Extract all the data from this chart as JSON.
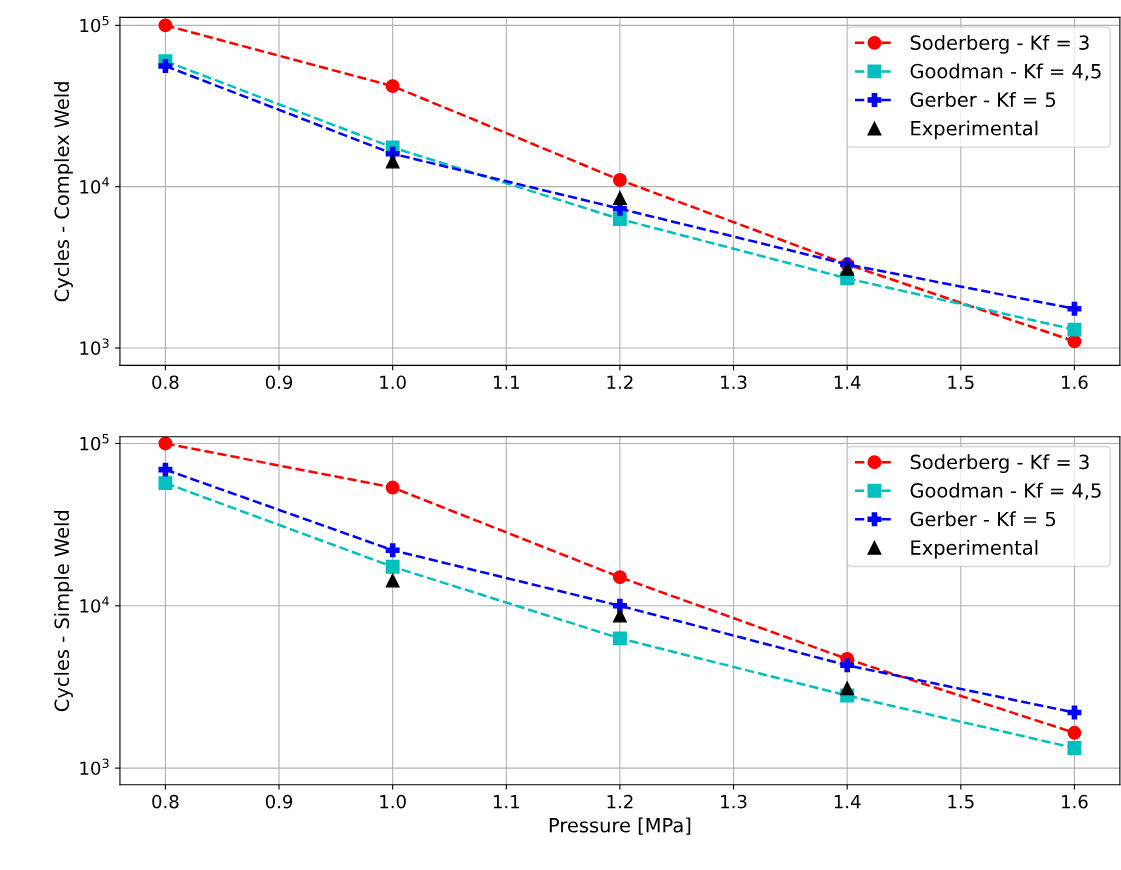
{
  "chart_data": [
    {
      "type": "line",
      "ylabel": "Cycles - Complex Weld",
      "x": [
        0.8,
        1.0,
        1.2,
        1.4,
        1.6
      ],
      "log": "y",
      "grid": true,
      "legend": "top right",
      "xlim": [
        0.76,
        1.64
      ],
      "xticks": [
        0.8,
        0.9,
        {
          "value": 1.0,
          "label": "1.0"
        },
        1.1,
        1.2,
        1.3,
        1.4,
        1.5,
        1.6
      ],
      "ylim": [
        780,
        112000
      ],
      "yticks": [
        {
          "value": 1000,
          "label": "10$^{3}$"
        },
        {
          "value": 10000,
          "label": "10$^{4}$"
        },
        {
          "value": 100000,
          "label": "10$^{5}$"
        }
      ],
      "series": [
        {
          "name": "Soderberg - Kf = 3",
          "color": "#ff0000",
          "marker": "circle",
          "line_style": "dashed",
          "values": [
            100000,
            42000,
            11000,
            3300,
            1100
          ]
        },
        {
          "name": "Goodman - Kf = 4,5",
          "color": "#00bfbf",
          "marker": "square",
          "line_style": "dashed",
          "values": [
            60000,
            17500,
            6300,
            2700,
            1300
          ]
        },
        {
          "name": "Gerber - Kf = 5",
          "color": "#0000ff",
          "marker": "cross",
          "line_style": "dashed",
          "values": [
            56000,
            16000,
            7300,
            3300,
            1750
          ]
        },
        {
          "name": "Experimental",
          "color": "#000000",
          "type": "scatter",
          "marker": "triangle",
          "values": [
            null,
            14300,
            8500,
            3100,
            null
          ]
        }
      ]
    },
    {
      "type": "line",
      "ylabel": "Cycles - Simple Weld",
      "xlabel": "Pressure [MPa]",
      "x": [
        0.8,
        1.0,
        1.2,
        1.4,
        1.6
      ],
      "log": "y",
      "grid": true,
      "legend": "top right",
      "xlim": [
        0.76,
        1.64
      ],
      "xticks": [
        0.8,
        0.9,
        {
          "value": 1.0,
          "label": "1.0"
        },
        1.1,
        1.2,
        1.3,
        1.4,
        1.5,
        1.6
      ],
      "ylim": [
        790,
        110000
      ],
      "yticks": [
        {
          "value": 1000,
          "label": "10$^{3}$"
        },
        {
          "value": 10000,
          "label": "10$^{4}$"
        },
        {
          "value": 100000,
          "label": "10$^{5}$"
        }
      ],
      "series": [
        {
          "name": "Soderberg - Kf = 3",
          "color": "#ff0000",
          "marker": "circle",
          "line_style": "dashed",
          "values": [
            100000,
            53500,
            15000,
            4700,
            1650
          ]
        },
        {
          "name": "Goodman - Kf = 4,5",
          "color": "#00bfbf",
          "marker": "square",
          "line_style": "dashed",
          "values": [
            57000,
            17400,
            6300,
            2800,
            1330
          ]
        },
        {
          "name": "Gerber - Kf = 5",
          "color": "#0000ff",
          "marker": "cross",
          "line_style": "dashed",
          "values": [
            69000,
            22000,
            10000,
            4300,
            2200
          ]
        },
        {
          "name": "Experimental",
          "color": "#000000",
          "type": "scatter",
          "marker": "triangle",
          "values": [
            null,
            14300,
            8700,
            3100,
            null
          ]
        }
      ]
    }
  ]
}
